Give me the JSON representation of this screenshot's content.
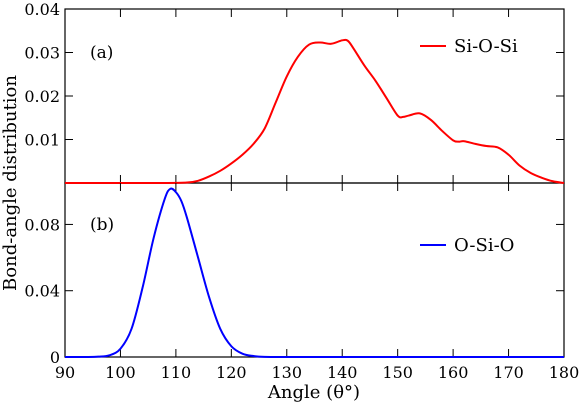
{
  "chart_data": [
    {
      "type": "line",
      "panel_label": "(a)",
      "xlabel": "Angle (θ°)",
      "ylabel": "Bond-angle distribution",
      "xlim": [
        90,
        180
      ],
      "ylim": [
        0,
        0.04
      ],
      "xticks": [
        90,
        100,
        110,
        120,
        130,
        140,
        150,
        160,
        170,
        180
      ],
      "xtick_labels": [
        "90",
        "100",
        "110",
        "120",
        "130",
        "140",
        "150",
        "160",
        "170",
        "180"
      ],
      "yticks": [
        0.01,
        0.02,
        0.03,
        0.04
      ],
      "ytick_labels": [
        "0.01",
        "0.02",
        "0.03",
        "0.04"
      ],
      "legend_position": "top-right",
      "series": [
        {
          "name": "Si-O-Si",
          "color": "#ff0000",
          "x": [
            90,
            100,
            108,
            112,
            114,
            116,
            118,
            120,
            122,
            124,
            126,
            128,
            130,
            132,
            134,
            136,
            138,
            140,
            141,
            142,
            144,
            146,
            148,
            150,
            151,
            152,
            154,
            156,
            158,
            160,
            161,
            162,
            164,
            166,
            168,
            170,
            172,
            174,
            176,
            178,
            180
          ],
          "y": [
            0,
            0,
            0,
            0.0001,
            0.0005,
            0.0015,
            0.0028,
            0.0045,
            0.0065,
            0.009,
            0.0125,
            0.0185,
            0.0245,
            0.029,
            0.0318,
            0.0323,
            0.032,
            0.0328,
            0.0327,
            0.031,
            0.027,
            0.0235,
            0.0195,
            0.0155,
            0.0152,
            0.0155,
            0.016,
            0.0145,
            0.012,
            0.0098,
            0.0095,
            0.0096,
            0.009,
            0.0085,
            0.0082,
            0.0065,
            0.004,
            0.0023,
            0.0012,
            0.0004,
            0
          ]
        }
      ]
    },
    {
      "type": "line",
      "panel_label": "(b)",
      "xlim": [
        90,
        180
      ],
      "ylim": [
        0,
        0.105
      ],
      "yticks": [
        0,
        0.04,
        0.08
      ],
      "ytick_labels": [
        "0",
        "0.04",
        "0.08"
      ],
      "legend_position": "right",
      "series": [
        {
          "name": "O-Si-O",
          "color": "#0000ff",
          "x": [
            90,
            94,
            96,
            98,
            100,
            102,
            104,
            106,
            108,
            109,
            110,
            111,
            112,
            114,
            116,
            118,
            120,
            122,
            124,
            126,
            130,
            140,
            150,
            160,
            170,
            180
          ],
          "y": [
            0,
            0,
            0.0002,
            0.001,
            0.005,
            0.017,
            0.042,
            0.072,
            0.0955,
            0.1015,
            0.0995,
            0.094,
            0.084,
            0.06,
            0.036,
            0.017,
            0.0065,
            0.002,
            0.0006,
            0.0001,
            0,
            0,
            0,
            0,
            0,
            0
          ]
        }
      ]
    }
  ]
}
